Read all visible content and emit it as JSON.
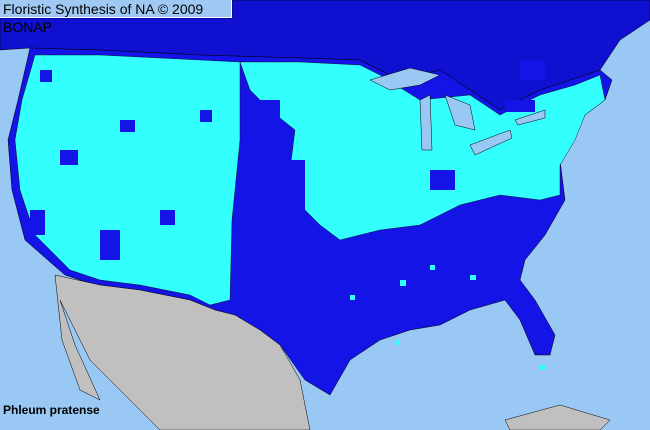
{
  "header": {
    "title": "Floristic Synthesis of NA © 2009 BONAP"
  },
  "map": {
    "species": "Phleum pratense",
    "colors": {
      "ocean": "#99c8f5",
      "present_county": "#33ffff",
      "state_present_not_in_county": "#1414e6",
      "canada": "#1010d0",
      "mexico": "#c0c0c0",
      "county_lines": "#000000"
    }
  }
}
